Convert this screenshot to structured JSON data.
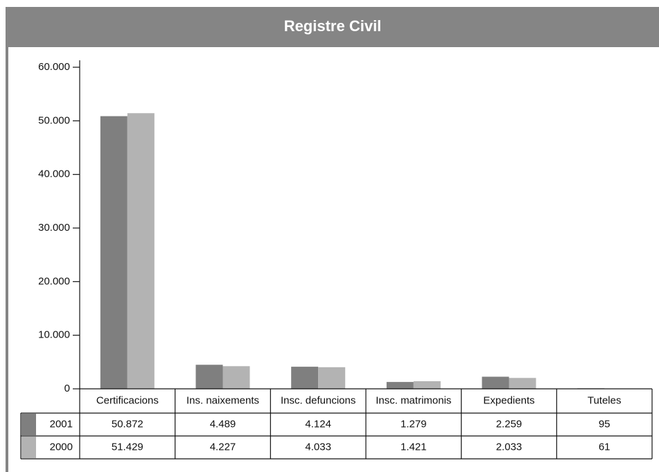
{
  "chart_data": {
    "type": "bar",
    "title": "Registre Civil",
    "categories": [
      "Certificacions",
      "Ins. naixements",
      "Insc. defuncions",
      "Insc. matrimonis",
      "Expedients",
      "Tuteles"
    ],
    "series": [
      {
        "name": "2001",
        "color": "#7f7f7f",
        "values": [
          50872,
          4489,
          4124,
          1279,
          2259,
          95
        ],
        "value_labels": [
          "50.872",
          "4.489",
          "4.124",
          "1.279",
          "2.259",
          "95"
        ]
      },
      {
        "name": "2000",
        "color": "#b3b3b3",
        "values": [
          51429,
          4227,
          4033,
          1421,
          2033,
          61
        ],
        "value_labels": [
          "51.429",
          "4.227",
          "4.033",
          "1.421",
          "2.033",
          "61"
        ]
      }
    ],
    "ylim": [
      0,
      60000
    ],
    "yticks": [
      0,
      {
        "value": 10000,
        "label": "10.000"
      },
      {
        "value": 20000,
        "label": "20.000"
      },
      {
        "value": 30000,
        "label": "30.000"
      },
      {
        "value": 40000,
        "label": "40.000"
      },
      {
        "value": 50000,
        "label": "50.000"
      },
      {
        "value": 60000,
        "label": "60.000"
      }
    ]
  }
}
